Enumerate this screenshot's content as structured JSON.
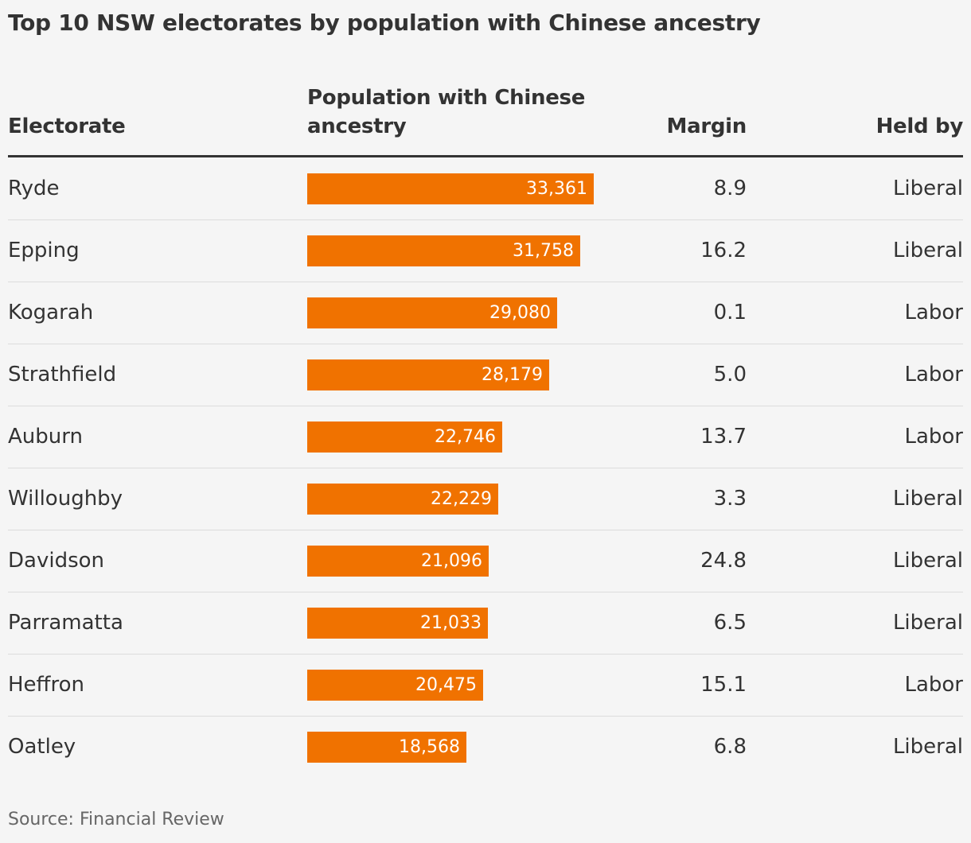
{
  "title": "Top 10 NSW electorates by population with Chinese ancestry",
  "source": "Source: Financial Review",
  "colors": {
    "bar": "#f07200",
    "background": "#f5f5f5",
    "text": "#333333"
  },
  "headers": {
    "electorate": "Electorate",
    "population": "Population with Chinese ancestry",
    "margin": "Margin",
    "held_by": "Held by"
  },
  "chart_data": {
    "type": "table",
    "title": "Top 10 NSW electorates by population with Chinese ancestry",
    "columns": [
      "Electorate",
      "Population with Chinese ancestry",
      "Margin",
      "Held by"
    ],
    "rows": [
      {
        "electorate": "Ryde",
        "population": 33361,
        "population_label": "33,361",
        "margin": "8.9",
        "held_by": "Liberal"
      },
      {
        "electorate": "Epping",
        "population": 31758,
        "population_label": "31,758",
        "margin": "16.2",
        "held_by": "Liberal"
      },
      {
        "electorate": "Kogarah",
        "population": 29080,
        "population_label": "29,080",
        "margin": "0.1",
        "held_by": "Labor"
      },
      {
        "electorate": "Strathfield",
        "population": 28179,
        "population_label": "28,179",
        "margin": "5.0",
        "held_by": "Labor"
      },
      {
        "electorate": "Auburn",
        "population": 22746,
        "population_label": "22,746",
        "margin": "13.7",
        "held_by": "Labor"
      },
      {
        "electorate": "Willoughby",
        "population": 22229,
        "population_label": "22,229",
        "margin": "3.3",
        "held_by": "Liberal"
      },
      {
        "electorate": "Davidson",
        "population": 21096,
        "population_label": "21,096",
        "margin": "24.8",
        "held_by": "Liberal"
      },
      {
        "electorate": "Parramatta",
        "population": 21033,
        "population_label": "21,033",
        "margin": "6.5",
        "held_by": "Liberal"
      },
      {
        "electorate": "Heffron",
        "population": 20475,
        "population_label": "20,475",
        "margin": "15.1",
        "held_by": "Labor"
      },
      {
        "electorate": "Oatley",
        "population": 18568,
        "population_label": "18,568",
        "margin": "6.8",
        "held_by": "Liberal"
      }
    ],
    "bar_max": 33361,
    "source": "Source: Financial Review"
  }
}
